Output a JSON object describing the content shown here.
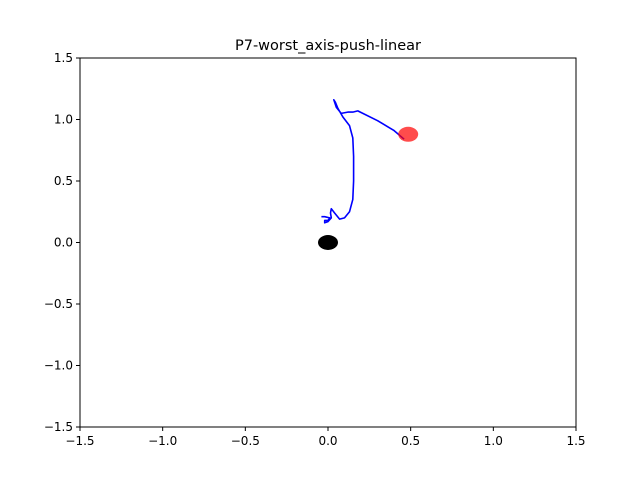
{
  "chart_data": {
    "type": "line",
    "title": "P7-worst_axis-push-linear",
    "xlabel": "",
    "ylabel": "",
    "xlim": [
      -1.5,
      1.5
    ],
    "ylim": [
      -1.5,
      1.5
    ],
    "xticks": [
      -1.5,
      -1.0,
      -0.5,
      0.0,
      0.5,
      1.0,
      1.5
    ],
    "yticks": [
      -1.5,
      -1.0,
      -0.5,
      0.0,
      0.5,
      1.0,
      1.5
    ],
    "xtick_labels": [
      "−1.5",
      "−1.0",
      "−0.5",
      "0.0",
      "0.5",
      "1.0",
      "1.5"
    ],
    "ytick_labels": [
      "−1.5",
      "−1.0",
      "−0.5",
      "0.0",
      "0.5",
      "1.0",
      "1.5"
    ],
    "grid": false,
    "series": [
      {
        "color": "#0000ff",
        "points": [
          [
            0.46,
            0.84
          ],
          [
            0.4,
            0.91
          ],
          [
            0.3,
            0.99
          ],
          [
            0.18,
            1.07
          ],
          [
            0.15,
            1.06
          ],
          [
            0.12,
            1.06
          ],
          [
            0.08,
            1.05
          ],
          [
            0.05,
            1.1
          ],
          [
            0.035,
            1.16
          ],
          [
            0.045,
            1.14
          ],
          [
            0.06,
            1.09
          ],
          [
            0.09,
            1.02
          ],
          [
            0.13,
            0.95
          ],
          [
            0.15,
            0.85
          ],
          [
            0.155,
            0.7
          ],
          [
            0.155,
            0.5
          ],
          [
            0.15,
            0.35
          ],
          [
            0.13,
            0.25
          ],
          [
            0.1,
            0.2
          ],
          [
            0.07,
            0.19
          ],
          [
            0.04,
            0.24
          ],
          [
            0.02,
            0.275
          ],
          [
            0.015,
            0.24
          ],
          [
            0.02,
            0.2
          ],
          [
            0.0,
            0.17
          ],
          [
            -0.02,
            0.16
          ],
          [
            -0.02,
            0.18
          ],
          [
            0.0,
            0.18
          ],
          [
            0.01,
            0.2
          ],
          [
            -0.02,
            0.21
          ],
          [
            -0.04,
            0.21
          ]
        ]
      }
    ],
    "markers": [
      {
        "x": 0.0,
        "y": 0.0,
        "color": "#000000",
        "alpha": 1.0
      },
      {
        "x": 0.485,
        "y": 0.88,
        "color": "#ff0000",
        "alpha": 0.7
      }
    ]
  }
}
